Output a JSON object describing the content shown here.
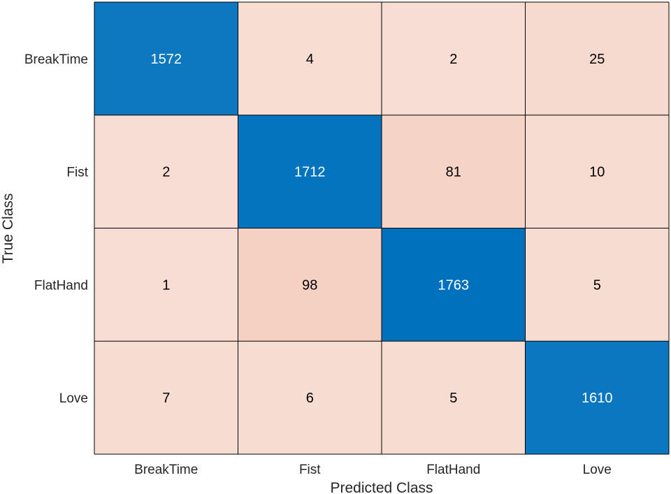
{
  "chart_data": {
    "type": "heatmap",
    "title": "",
    "xlabel": "Predicted Class",
    "ylabel": "True Class",
    "x_categories": [
      "BreakTime",
      "Fist",
      "FlatHand",
      "Love"
    ],
    "y_categories": [
      "BreakTime",
      "Fist",
      "FlatHand",
      "Love"
    ],
    "values": [
      [
        1572,
        4,
        2,
        25
      ],
      [
        2,
        1712,
        81,
        10
      ],
      [
        1,
        98,
        1763,
        5
      ],
      [
        7,
        6,
        5,
        1610
      ]
    ],
    "colors": {
      "high": "#0072bd",
      "low": "#f7ddd3",
      "mid": "#f5d1c3",
      "text_on_dark": "#ffffff",
      "text_on_light": "#000000",
      "grid": "#000000",
      "axis_text": "#262626"
    }
  }
}
